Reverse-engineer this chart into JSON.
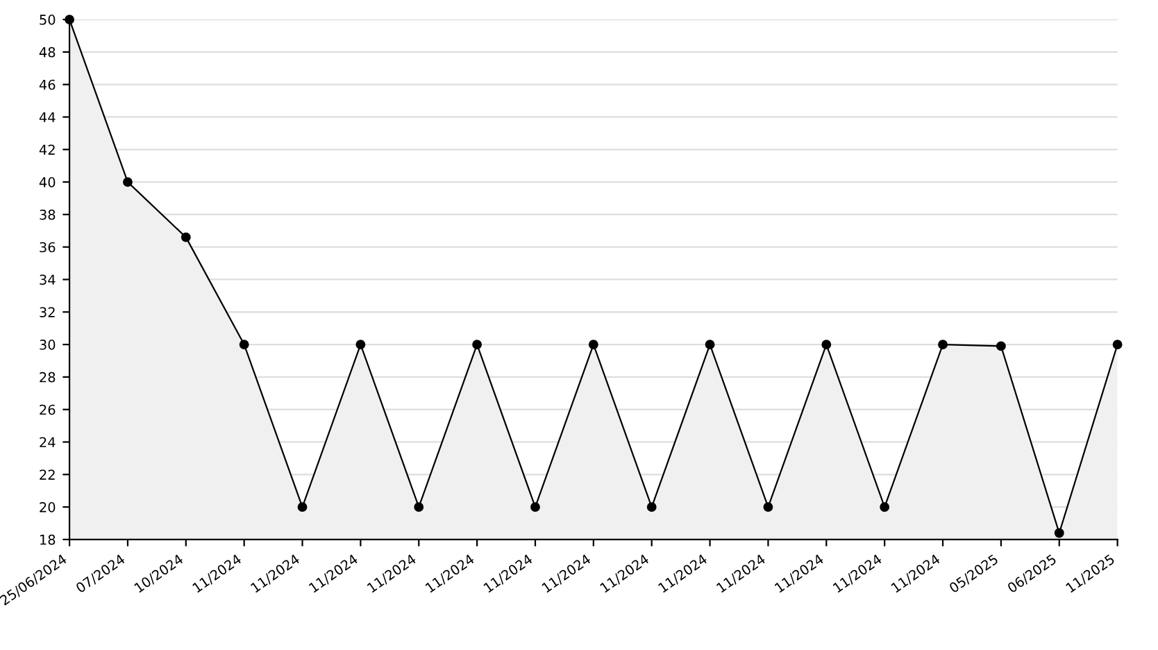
{
  "chart_data": {
    "type": "area",
    "categories": [
      "25/06/2024",
      "07/2024",
      "10/2024",
      "11/2024",
      "11/2024",
      "11/2024",
      "11/2024",
      "11/2024",
      "11/2024",
      "11/2024",
      "11/2024",
      "11/2024",
      "11/2024",
      "11/2024",
      "11/2024",
      "11/2024",
      "05/2025",
      "06/2025",
      "11/2025"
    ],
    "series": [
      {
        "color": "#000000",
        "values": [
          50,
          40,
          36.6,
          30,
          20,
          30,
          20,
          30,
          20,
          30,
          20,
          30,
          20,
          30,
          20,
          30,
          29.9,
          18.4,
          30
        ]
      }
    ],
    "ylim": [
      18,
      50
    ],
    "yticks": [
      18,
      20,
      22,
      24,
      26,
      28,
      30,
      32,
      34,
      36,
      38,
      40,
      42,
      44,
      46,
      48,
      50
    ],
    "grid": "y",
    "marker": "circle",
    "line_style": "solid"
  }
}
